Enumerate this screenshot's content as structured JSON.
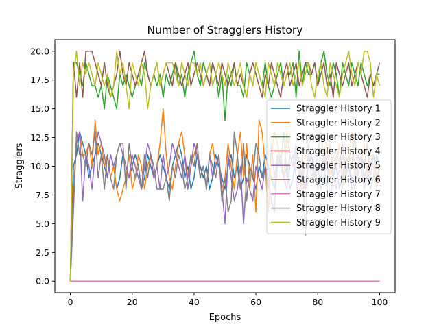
{
  "chart_data": {
    "type": "line",
    "title": "Number of Stragglers History",
    "xlabel": "Epochs",
    "ylabel": "Stragglers",
    "xlim": [
      -5,
      105
    ],
    "ylim": [
      -1,
      21
    ],
    "xticks": [
      0,
      20,
      40,
      60,
      80,
      100
    ],
    "yticks": [
      0.0,
      2.5,
      5.0,
      7.5,
      10.0,
      12.5,
      15.0,
      17.5,
      20.0
    ],
    "ytick_labels": [
      "0.0",
      "2.5",
      "5.0",
      "7.5",
      "10.0",
      "12.5",
      "15.0",
      "17.5",
      "20.0"
    ],
    "grid": false,
    "legend_position": "center-right",
    "x": [
      0,
      1,
      2,
      3,
      4,
      5,
      6,
      7,
      8,
      9,
      10,
      11,
      12,
      13,
      14,
      15,
      16,
      17,
      18,
      19,
      20,
      21,
      22,
      23,
      24,
      25,
      26,
      27,
      28,
      29,
      30,
      31,
      32,
      33,
      34,
      35,
      36,
      37,
      38,
      39,
      40,
      41,
      42,
      43,
      44,
      45,
      46,
      47,
      48,
      49,
      50,
      51,
      52,
      53,
      54,
      55,
      56,
      57,
      58,
      59,
      60,
      61,
      62,
      63,
      64,
      65,
      66,
      67,
      68,
      69,
      70,
      71,
      72,
      73,
      74,
      75,
      76,
      77,
      78,
      79,
      80,
      81,
      82,
      83,
      84,
      85,
      86,
      87,
      88,
      89,
      90,
      91,
      92,
      93,
      94,
      95,
      96,
      97,
      98,
      99,
      100
    ],
    "series": [
      {
        "name": "Straggler History 1",
        "color": "#1f77b4",
        "values": [
          0,
          10,
          11,
          13,
          12,
          11,
          9,
          10,
          11,
          12,
          11,
          10,
          9,
          11,
          10,
          8,
          9,
          11,
          10,
          9,
          10,
          11,
          10,
          8,
          9,
          11,
          10,
          9,
          10,
          11,
          10,
          9,
          8,
          10,
          11,
          12,
          11,
          9,
          10,
          8,
          9,
          11,
          10,
          9,
          10,
          8,
          9,
          11,
          10,
          9,
          8,
          10,
          11,
          9,
          10,
          8,
          9,
          11,
          10,
          9,
          8,
          10,
          9,
          11,
          10,
          9,
          8,
          10,
          11,
          9,
          10,
          8,
          9,
          11,
          10,
          9,
          8,
          10,
          11,
          9,
          10,
          8,
          9,
          11,
          10,
          9,
          10,
          8,
          9,
          11,
          10,
          9,
          8,
          10,
          11,
          9,
          10,
          8,
          9,
          11,
          10
        ]
      },
      {
        "name": "Straggler History 2",
        "color": "#ff7f0e",
        "values": [
          0,
          8,
          12,
          13,
          11,
          11,
          12,
          10,
          14,
          11,
          12,
          10,
          11,
          9,
          10,
          8,
          7,
          8,
          9,
          11,
          8,
          9,
          11,
          10,
          8,
          10,
          11,
          9,
          10,
          12,
          15,
          11,
          9,
          8,
          10,
          12,
          13,
          11,
          9,
          10,
          11,
          12,
          9,
          10,
          8,
          11,
          12,
          10,
          11,
          8,
          9,
          12,
          10,
          8,
          11,
          13,
          9,
          12,
          8,
          11,
          6,
          14,
          13,
          10,
          6,
          11,
          13,
          12,
          10,
          9,
          13,
          11,
          10,
          12,
          10,
          8,
          11,
          12,
          10,
          9,
          11,
          13,
          10,
          12,
          9,
          11,
          10,
          12,
          8,
          11,
          10,
          13,
          9,
          11,
          10,
          12,
          9,
          11,
          10,
          8,
          10
        ]
      },
      {
        "name": "Straggler History 3",
        "color": "#2ca02c",
        "values": [
          0,
          19,
          19,
          18,
          17,
          19,
          18,
          17,
          17,
          16,
          17,
          15,
          18,
          17,
          16,
          15,
          18,
          17,
          18,
          17,
          16,
          17,
          18,
          17,
          19,
          18,
          17,
          18,
          17,
          18,
          16,
          18,
          17,
          18,
          19,
          17,
          18,
          16,
          18,
          19,
          20,
          18,
          17,
          19,
          18,
          17,
          19,
          18,
          16,
          18,
          14,
          18,
          17,
          19,
          17,
          17,
          16,
          19,
          18,
          17,
          19,
          18,
          17,
          19,
          17,
          16,
          17,
          18,
          19,
          17,
          18,
          18,
          19,
          16,
          20,
          17,
          19,
          18,
          18,
          19,
          17,
          19,
          20,
          18,
          17,
          19,
          18,
          16,
          19,
          18,
          17,
          19,
          18,
          17,
          19,
          18,
          17,
          18,
          17,
          18,
          18
        ]
      },
      {
        "name": "Straggler History 4",
        "color": "#d62728",
        "values": [
          0,
          0,
          0,
          0,
          0,
          0,
          0,
          0,
          0,
          0,
          0,
          0,
          0,
          0,
          0,
          0,
          0,
          0,
          0,
          0,
          0,
          0,
          0,
          0,
          0,
          0,
          0,
          0,
          0,
          0,
          0,
          0,
          0,
          0,
          0,
          0,
          0,
          0,
          0,
          0,
          0,
          0,
          0,
          0,
          0,
          0,
          0,
          0,
          0,
          0,
          0,
          0,
          0,
          0,
          0,
          0,
          0,
          0,
          0,
          0,
          0,
          0,
          0,
          0,
          0,
          0,
          0,
          0,
          0,
          0,
          0,
          0,
          0,
          0,
          0,
          0,
          0,
          0,
          0,
          0,
          0,
          0,
          0,
          0,
          0,
          0,
          0,
          0,
          0,
          0,
          0,
          0,
          0,
          0,
          0,
          0,
          0,
          0,
          0,
          0,
          0
        ]
      },
      {
        "name": "Straggler History 5",
        "color": "#9467bd",
        "values": [
          0,
          7,
          12,
          13,
          7,
          11,
          10,
          8,
          11,
          13,
          12,
          11,
          9,
          11,
          10,
          11,
          12,
          11,
          10,
          9,
          11,
          10,
          9,
          8,
          10,
          12,
          11,
          9,
          10,
          8,
          11,
          9,
          10,
          12,
          11,
          10,
          9,
          11,
          8,
          10,
          12,
          11,
          9,
          10,
          8,
          11,
          9,
          10,
          11,
          8,
          5,
          11,
          9,
          7,
          8,
          10,
          5,
          9,
          8,
          7,
          10,
          9,
          8,
          10,
          9,
          7,
          6,
          11,
          10,
          9,
          8,
          10,
          11,
          9,
          7,
          10,
          8,
          11,
          9,
          10,
          8,
          9,
          11,
          10,
          7,
          9,
          8,
          10,
          11,
          9,
          10,
          8,
          9,
          11,
          10,
          8,
          9,
          10,
          11,
          9,
          10
        ]
      },
      {
        "name": "Straggler History 6",
        "color": "#8c564b",
        "values": [
          0,
          19,
          16,
          19,
          16,
          20,
          20,
          20,
          19,
          18,
          17,
          19,
          17,
          16,
          17,
          18,
          20,
          18,
          17,
          19,
          18,
          17,
          18,
          19,
          20,
          18,
          17,
          18,
          19,
          17,
          18,
          19,
          18,
          17,
          19,
          18,
          17,
          18,
          19,
          17,
          18,
          19,
          18,
          17,
          18,
          17,
          19,
          18,
          17,
          19,
          18,
          17,
          18,
          19,
          17,
          18,
          17,
          16,
          18,
          19,
          18,
          17,
          16,
          18,
          17,
          19,
          18,
          17,
          16,
          18,
          19,
          17,
          18,
          19,
          17,
          18,
          19,
          19,
          18,
          19,
          17,
          18,
          19,
          17,
          18,
          16,
          19,
          18,
          17,
          18,
          19,
          17,
          18,
          19,
          18,
          17,
          16,
          18,
          17,
          18,
          19
        ]
      },
      {
        "name": "Straggler History 7",
        "color": "#e377c2",
        "values": [
          0,
          0,
          0,
          0,
          0,
          0,
          0,
          0,
          0,
          0,
          0,
          0,
          0,
          0,
          0,
          0,
          0,
          0,
          0,
          0,
          0,
          0,
          0,
          0,
          0,
          0,
          0,
          0,
          0,
          0,
          0,
          0,
          0,
          0,
          0,
          0,
          0,
          0,
          0,
          0,
          0,
          0,
          0,
          0,
          0,
          0,
          0,
          0,
          0,
          0,
          0,
          0,
          0,
          0,
          0,
          0,
          0,
          0,
          0,
          0,
          0,
          0,
          0,
          0,
          0,
          0,
          0,
          0,
          0,
          0,
          0,
          0,
          0,
          0,
          0,
          0,
          0,
          0,
          0,
          0,
          0,
          0,
          0,
          0,
          0,
          0,
          0,
          0,
          0,
          0,
          0,
          0,
          0,
          0,
          0,
          0,
          0,
          0,
          0,
          0,
          0
        ]
      },
      {
        "name": "Straggler History 8",
        "color": "#7f7f7f",
        "values": [
          0,
          6,
          13,
          11,
          11,
          10,
          12,
          11,
          13,
          9,
          11,
          8,
          11,
          9,
          8,
          11,
          12,
          12,
          8,
          12,
          10,
          9,
          10,
          8,
          11,
          9,
          11,
          10,
          8,
          8,
          8,
          9,
          7,
          10,
          9,
          11,
          10,
          8,
          9,
          11,
          10,
          12,
          9,
          10,
          8,
          11,
          10,
          9,
          11,
          7,
          9,
          6,
          7,
          13,
          11,
          8,
          12,
          7,
          10,
          9,
          12,
          11,
          9,
          10,
          8,
          12,
          9,
          11,
          10,
          13,
          9,
          11,
          10,
          12,
          9,
          11,
          4,
          12,
          10,
          9,
          11,
          13,
          10,
          8,
          12,
          9,
          11,
          10,
          12,
          9,
          11,
          10,
          13,
          9,
          11,
          10,
          12,
          9,
          11,
          10,
          10
        ]
      },
      {
        "name": "Straggler History 9",
        "color": "#bcbd22",
        "values": [
          0,
          18,
          20,
          17,
          19,
          18,
          19,
          18,
          17,
          19,
          18,
          17,
          18,
          16,
          17,
          20,
          18,
          19,
          17,
          15,
          19,
          18,
          17,
          19,
          18,
          15,
          17,
          18,
          19,
          17,
          18,
          19,
          19,
          19,
          18,
          17,
          19,
          18,
          17,
          19,
          19,
          18,
          19,
          17,
          18,
          19,
          17,
          18,
          19,
          18,
          17,
          19,
          18,
          17,
          18,
          19,
          17,
          16,
          18,
          17,
          19,
          18,
          17,
          16,
          19,
          18,
          17,
          19,
          18,
          17,
          18,
          19,
          17,
          18,
          19,
          17,
          18,
          19,
          17,
          16,
          18,
          19,
          17,
          16,
          19,
          18,
          17,
          16,
          18,
          19,
          20,
          18,
          17,
          19,
          18,
          20,
          20,
          19,
          16,
          18,
          17
        ]
      }
    ]
  }
}
